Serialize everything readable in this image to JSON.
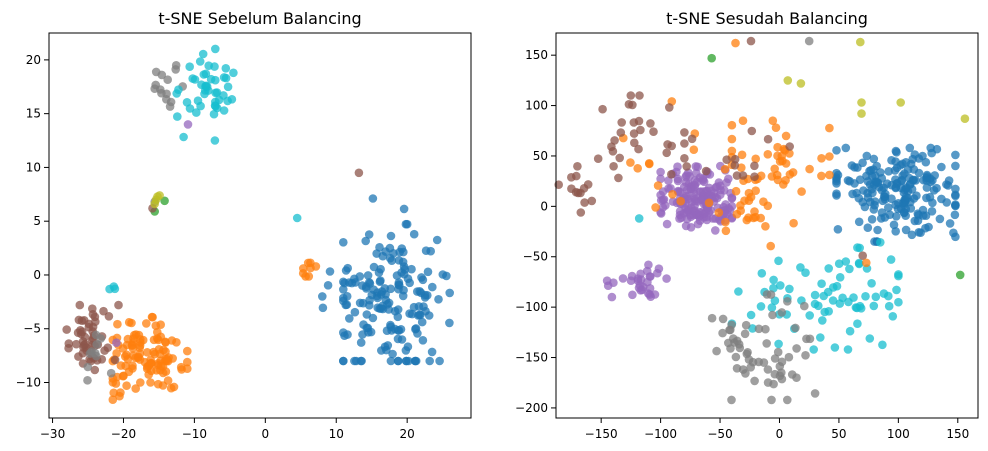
{
  "chart_data": [
    {
      "type": "scatter",
      "title": "t-SNE Sebelum Balancing",
      "xlabel": "",
      "ylabel": "",
      "xlim": [
        -30.5,
        29
      ],
      "ylim": [
        -13.3,
        22.5
      ],
      "xticks": [
        -30,
        -20,
        -10,
        0,
        10,
        20
      ],
      "yticks": [
        -10,
        -5,
        0,
        5,
        10,
        15,
        20
      ],
      "grid": false,
      "clusters": [
        {
          "color": "#1f77b4",
          "n": 170,
          "cx": 17.5,
          "cy": -2.2,
          "sx": 4.3,
          "sy": 3.4,
          "xmin": 11,
          "xmax": 26,
          "ymin": -8,
          "ymax": 7.6
        },
        {
          "color": "#1f77b4",
          "n": 4,
          "cx": 8.5,
          "cy": -2.5,
          "sx": 0.6,
          "sy": 1.2
        },
        {
          "color": "#ff7f0e",
          "n": 110,
          "cx": -17,
          "cy": -8.0,
          "sx": 2.8,
          "sy": 1.6,
          "xmin": -21.5,
          "xmax": -11,
          "ymin": -11.6,
          "ymax": -2.5
        },
        {
          "color": "#ff7f0e",
          "n": 8,
          "cx": 6.2,
          "cy": 0.6,
          "sx": 0.5,
          "sy": 0.7
        },
        {
          "color": "#8c564b",
          "n": 50,
          "cx": -24.5,
          "cy": -5.8,
          "sx": 2.2,
          "sy": 1.5,
          "xmin": -28,
          "xmax": -20,
          "ymin": -9,
          "ymax": -2.8
        },
        {
          "color": "#7f7f7f",
          "n": 10,
          "cx": -24,
          "cy": -7.2,
          "sx": 1.2,
          "sy": 1.0
        },
        {
          "color": "#7f7f7f",
          "n": 14,
          "cx": -13.8,
          "cy": 17.4,
          "sx": 1.0,
          "sy": 1.0
        },
        {
          "color": "#17becf",
          "n": 46,
          "cx": -8.0,
          "cy": 17.4,
          "sx": 1.9,
          "sy": 2.0,
          "xmin": -12.5,
          "xmax": -4.5,
          "ymin": 12.5,
          "ymax": 21.2
        },
        {
          "color": "#17becf",
          "n": 3,
          "cx": -21.3,
          "cy": -1.2,
          "sx": 0.3,
          "sy": 0.2
        }
      ],
      "points": [
        {
          "x": 13.2,
          "y": 9.5,
          "color": "#8c564b"
        },
        {
          "x": 4.5,
          "y": 5.3,
          "color": "#17becf"
        },
        {
          "x": -10.9,
          "y": 14.0,
          "color": "#9467bd"
        },
        {
          "x": -20.7,
          "y": -2.8,
          "color": "#8c564b"
        },
        {
          "x": -15.6,
          "y": 6.8,
          "color": "#7f7f7f"
        },
        {
          "x": -15.6,
          "y": 5.9,
          "color": "#2ca02c"
        },
        {
          "x": -15.9,
          "y": 6.2,
          "color": "#8c564b"
        },
        {
          "x": -14.2,
          "y": 6.9,
          "color": "#2ca02c"
        },
        {
          "x": -15.4,
          "y": 7.0,
          "color": "#bcbd22"
        },
        {
          "x": -15.2,
          "y": 7.3,
          "color": "#bcbd22"
        },
        {
          "x": -15.6,
          "y": 6.6,
          "color": "#bcbd22"
        },
        {
          "x": -14.9,
          "y": 7.4,
          "color": "#bcbd22"
        },
        {
          "x": -21.0,
          "y": -6.3,
          "color": "#9467bd"
        }
      ]
    },
    {
      "type": "scatter",
      "title": "t-SNE Sesudah Balancing",
      "xlabel": "",
      "ylabel": "",
      "xlim": [
        -188,
        167
      ],
      "ylim": [
        -210,
        172
      ],
      "xticks": [
        -150,
        -100,
        -50,
        0,
        50,
        100,
        150
      ],
      "yticks": [
        -200,
        -150,
        -100,
        -50,
        0,
        50,
        100,
        150
      ],
      "grid": false,
      "clusters": [
        {
          "color": "#1f77b4",
          "n": 190,
          "cx": 100,
          "cy": 17,
          "sx": 28,
          "sy": 23,
          "xmin": 48,
          "xmax": 148,
          "ymin": -35,
          "ymax": 58
        },
        {
          "color": "#9467bd",
          "n": 170,
          "cx": -68,
          "cy": 7,
          "sx": 16,
          "sy": 15,
          "xmin": -100,
          "xmax": -40,
          "ymin": -28,
          "ymax": 40
        },
        {
          "color": "#9467bd",
          "n": 30,
          "cx": -120,
          "cy": -75,
          "sx": 12,
          "sy": 10,
          "xmin": -145,
          "xmax": -95,
          "ymin": -90,
          "ymax": -52
        },
        {
          "color": "#ff7f0e",
          "n": 45,
          "cx": 0,
          "cy": 45,
          "sx": 22,
          "sy": 28,
          "xmin": -40,
          "xmax": 42,
          "ymin": -5,
          "ymax": 85
        },
        {
          "color": "#ff7f0e",
          "n": 22,
          "cx": -30,
          "cy": -5,
          "sx": 12,
          "sy": 14
        },
        {
          "color": "#ff7f0e",
          "n": 12,
          "cx": -105,
          "cy": 45,
          "sx": 15,
          "sy": 30
        },
        {
          "color": "#8c564b",
          "n": 30,
          "cx": -130,
          "cy": 65,
          "sx": 25,
          "sy": 25,
          "xmin": -170,
          "xmax": -80,
          "ymin": 10,
          "ymax": 110
        },
        {
          "color": "#8c564b",
          "n": 14,
          "cx": -40,
          "cy": 55,
          "sx": 28,
          "sy": 20,
          "xmin": -80,
          "xmax": 25
        },
        {
          "color": "#8c564b",
          "n": 12,
          "cx": -170,
          "cy": 15,
          "sx": 8,
          "sy": 12
        },
        {
          "color": "#17becf",
          "n": 75,
          "cx": 45,
          "cy": -90,
          "sx": 35,
          "sy": 25,
          "xmin": -40,
          "xmax": 100,
          "ymin": -142,
          "ymax": -30
        },
        {
          "color": "#7f7f7f",
          "n": 60,
          "cx": -20,
          "cy": -145,
          "sx": 25,
          "sy": 25,
          "xmin": -80,
          "xmax": 30,
          "ymin": -192,
          "ymax": -85
        }
      ],
      "points": [
        {
          "x": -57,
          "y": 147,
          "color": "#2ca02c"
        },
        {
          "x": 152,
          "y": -68,
          "color": "#2ca02c"
        },
        {
          "x": -37,
          "y": 162,
          "color": "#ff7f0e"
        },
        {
          "x": -24,
          "y": 164,
          "color": "#8c564b"
        },
        {
          "x": 25,
          "y": 164,
          "color": "#7f7f7f"
        },
        {
          "x": 68,
          "y": 163,
          "color": "#bcbd22"
        },
        {
          "x": 7,
          "y": 125,
          "color": "#bcbd22"
        },
        {
          "x": 18,
          "y": 122,
          "color": "#bcbd22"
        },
        {
          "x": 69,
          "y": 103,
          "color": "#bcbd22"
        },
        {
          "x": 102,
          "y": 103,
          "color": "#bcbd22"
        },
        {
          "x": 69,
          "y": 92,
          "color": "#bcbd22"
        },
        {
          "x": 156,
          "y": 87,
          "color": "#bcbd22"
        },
        {
          "x": -118,
          "y": -12,
          "color": "#17becf"
        },
        {
          "x": 70,
          "y": -49,
          "color": "#8c564b"
        },
        {
          "x": 73,
          "y": -56,
          "color": "#ff7f0e"
        }
      ]
    }
  ]
}
